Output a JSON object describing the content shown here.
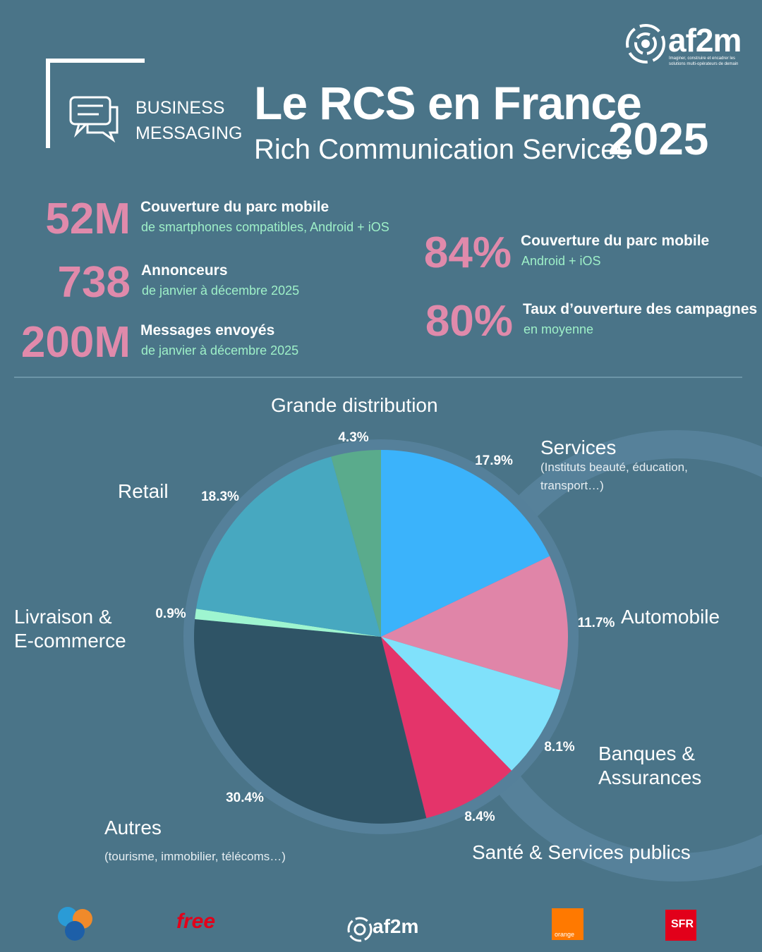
{
  "logo": {
    "name": "af2m",
    "tagline": "Imaginer, construire et encadrer les solutions multi-opérateurs de demain"
  },
  "header": {
    "kicker": "BUSINESS MESSAGING",
    "title": "Le RCS en France",
    "subtitle": "Rich Communication Services",
    "year": "2025"
  },
  "stats": [
    {
      "value": "52M",
      "label": "Couverture du parc mobile",
      "detail": "de smartphones compatibles, Android + iOS"
    },
    {
      "value": "738",
      "label": "Annonceurs",
      "detail": "de janvier à décembre 2025"
    },
    {
      "value": "200M",
      "label": "Messages envoyés",
      "detail": "de janvier à décembre 2025"
    },
    {
      "value": "84%",
      "label": "Couverture du parc mobile",
      "detail": "Android + iOS"
    },
    {
      "value": "80%",
      "label": "Taux d’ouverture des campagnes",
      "detail": "en moyenne"
    }
  ],
  "chart_data": {
    "type": "pie",
    "categories": [
      "Services",
      "Automobile",
      "Banques & Assurances",
      "Santé & Services publics",
      "Autres",
      "Livraison & E-commerce",
      "Retail",
      "Grande distribution"
    ],
    "values": [
      17.9,
      11.7,
      8.1,
      8.4,
      30.4,
      0.9,
      18.3,
      4.3
    ],
    "value_labels": [
      "17.9%",
      "11.7%",
      "8.1%",
      "8.4%",
      "30.4%",
      "0.9%",
      "18.3%",
      "4.3%"
    ],
    "colors": [
      "#3bb3fb",
      "#e085a8",
      "#80e1fb",
      "#e4346a",
      "#2f5466",
      "#9ef5d0",
      "#47a8c0",
      "#5aab8c"
    ],
    "annotations": [
      "(Instituts beauté, éducation, transport…)",
      "(tourisme, immobilier, télécoms…)"
    ]
  },
  "footer": {
    "logos": [
      "free",
      "af2m",
      "orange",
      "SFR"
    ]
  }
}
